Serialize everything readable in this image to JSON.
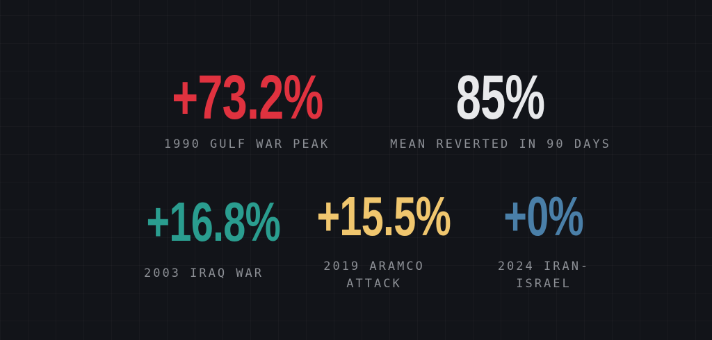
{
  "stats": [
    {
      "value": "+73.2%",
      "label": "1990 GULF WAR PEAK",
      "color": "#e0323f"
    },
    {
      "value": "85%",
      "label": "MEAN REVERTED IN 90 DAYS",
      "color": "#e8e9eb"
    },
    {
      "value": "+16.8%",
      "label": "2003 IRAQ WAR",
      "color": "#2a9d8f"
    },
    {
      "value": "+15.5%",
      "label": "2019 ARAMCO ATTACK",
      "color": "#f0c66e"
    },
    {
      "value": "+0%",
      "label": "2024 IRAN-ISRAEL",
      "color": "#4a7fa8"
    }
  ]
}
